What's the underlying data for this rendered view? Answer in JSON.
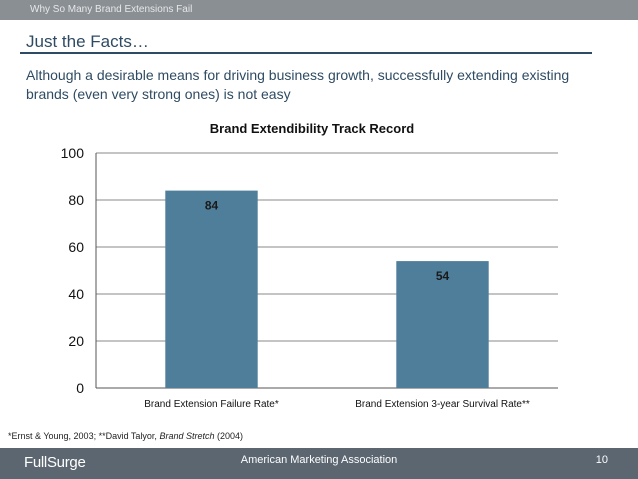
{
  "header": {
    "section": "Why So Many Brand Extensions Fail"
  },
  "slide": {
    "title": "Just the Facts…",
    "subtitle": "Although a desirable means for driving business growth, successfully extending existing brands (even very strong ones) is not easy"
  },
  "chart_data": {
    "type": "bar",
    "title": "Brand Extendibility Track Record",
    "categories": [
      "Brand Extension Failure Rate*",
      "Brand Extension 3-year Survival Rate**"
    ],
    "values": [
      84,
      54
    ],
    "data_labels": [
      "84",
      "54"
    ],
    "ylim": [
      0,
      100
    ],
    "yticks": [
      0,
      20,
      40,
      60,
      80,
      100
    ],
    "xlabel": "",
    "ylabel": "",
    "grid": true,
    "bar_color": "#4f7e9b"
  },
  "footnote": {
    "part1": "*Ernst & Young, 2003;  **David Talyor, ",
    "book": "Brand Stretch",
    "part2": " (2004)"
  },
  "footer": {
    "logo": "FullSurge",
    "organization": "American Marketing Association",
    "page_number": "10"
  }
}
